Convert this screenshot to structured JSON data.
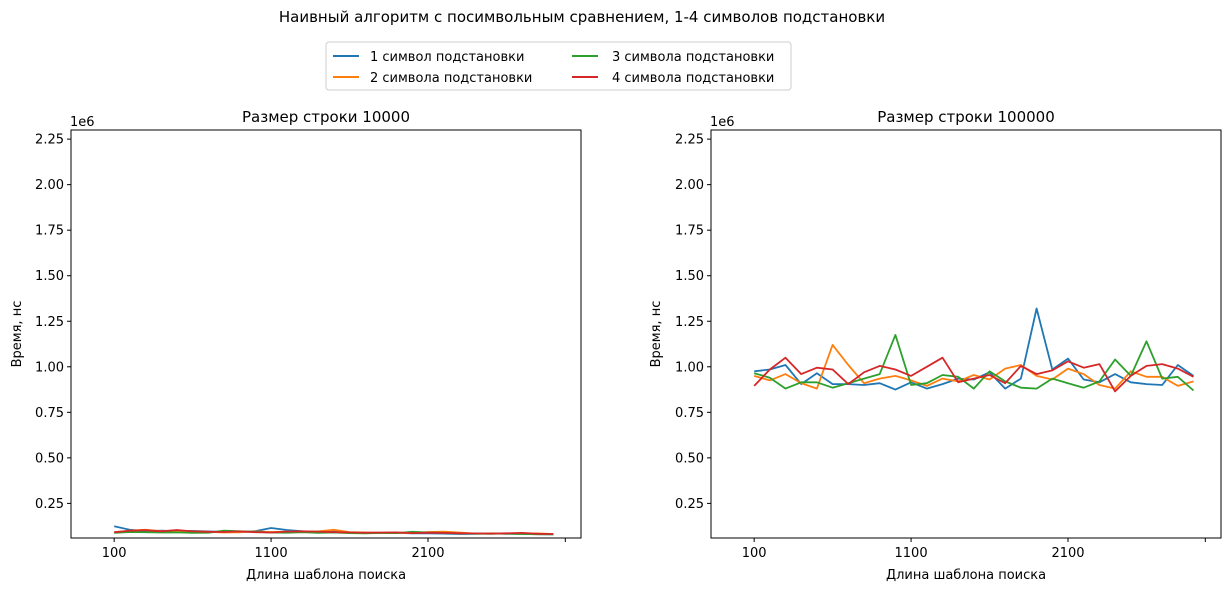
{
  "figure": {
    "suptitle": "Наивный алгоритм с посимвольным сравнением, 1-4 символов подстановки"
  },
  "legend": {
    "placement": "top-center",
    "entries": [
      {
        "label": "1 символ подстановки",
        "color": "#1f77b4"
      },
      {
        "label": "2 символа подстановки",
        "color": "#ff7f0e"
      },
      {
        "label": "3 символа подстановки",
        "color": "#2ca02c"
      },
      {
        "label": "4 символа подстановки",
        "color": "#d62728"
      }
    ]
  },
  "chart_data": [
    {
      "type": "line",
      "title": "Размер строки 10000",
      "xlabel": "Длина шаблона поиска",
      "ylabel": "Время, нс",
      "y_offset_label": "1e6",
      "xlim": [
        -175,
        3075
      ],
      "ylim": [
        60000,
        2300000
      ],
      "xticks": [
        100,
        1100,
        2100
      ],
      "yticks": [
        250000,
        500000,
        750000,
        1000000,
        1250000,
        1500000,
        1750000,
        2000000,
        2250000
      ],
      "ytick_labels": [
        "0.25",
        "0.50",
        "0.75",
        "1.00",
        "1.25",
        "1.50",
        "1.75",
        "2.00",
        "2.25"
      ],
      "x": [
        100,
        200,
        300,
        400,
        500,
        600,
        700,
        800,
        900,
        1000,
        1100,
        1200,
        1300,
        1400,
        1500,
        1600,
        1700,
        1800,
        1900,
        2000,
        2100,
        2200,
        2300,
        2400,
        2500,
        2600,
        2700,
        2800,
        2900
      ],
      "series": [
        {
          "name": "1 символ подстановки",
          "color": "#1f77b4",
          "values": [
            125000,
            105000,
            98000,
            100000,
            97000,
            99000,
            96000,
            93000,
            92000,
            98000,
            115000,
            104000,
            97000,
            96000,
            95000,
            90000,
            88000,
            87000,
            88000,
            86000,
            85000,
            84000,
            82000,
            83000,
            85000,
            83000,
            82000,
            81000,
            80000
          ]
        },
        {
          "name": "2 символа подстановки",
          "color": "#ff7f0e",
          "values": [
            90000,
            100000,
            105000,
            98000,
            95000,
            97000,
            94000,
            90000,
            92000,
            96000,
            93000,
            95000,
            93000,
            96000,
            105000,
            92000,
            90000,
            88000,
            89000,
            87000,
            93000,
            95000,
            90000,
            84000,
            86000,
            84000,
            83000,
            85000,
            82000
          ]
        },
        {
          "name": "3 символа подстановки",
          "color": "#2ca02c",
          "values": [
            88000,
            93000,
            92000,
            90000,
            91000,
            88000,
            89000,
            100000,
            97000,
            94000,
            90000,
            89000,
            92000,
            88000,
            90000,
            87000,
            86000,
            88000,
            87000,
            94000,
            90000,
            88000,
            85000,
            84000,
            83000,
            85000,
            82000,
            81000,
            80000
          ]
        },
        {
          "name": "4 символа подстановки",
          "color": "#d62728",
          "values": [
            92000,
            100000,
            103000,
            97000,
            104000,
            96000,
            94000,
            93000,
            96000,
            92000,
            90000,
            95000,
            97000,
            95000,
            92000,
            91000,
            89000,
            90000,
            91000,
            87000,
            89000,
            88000,
            86000,
            85000,
            84000,
            86000,
            88000,
            83000,
            82000
          ]
        }
      ]
    },
    {
      "type": "line",
      "title": "Размер строки 100000",
      "xlabel": "Длина шаблона поиска",
      "ylabel": "Время, нс",
      "y_offset_label": "1e6",
      "xlim": [
        -175,
        3075
      ],
      "ylim": [
        60000,
        2300000
      ],
      "xticks": [
        100,
        1100,
        2100
      ],
      "yticks": [
        250000,
        500000,
        750000,
        1000000,
        1250000,
        1500000,
        1750000,
        2000000,
        2250000
      ],
      "ytick_labels": [
        "0.25",
        "0.50",
        "0.75",
        "1.00",
        "1.25",
        "1.50",
        "1.75",
        "2.00",
        "2.25"
      ],
      "x": [
        100,
        200,
        300,
        400,
        500,
        600,
        700,
        800,
        900,
        1000,
        1100,
        1200,
        1300,
        1400,
        1500,
        1600,
        1700,
        1800,
        1900,
        2000,
        2100,
        2200,
        2300,
        2400,
        2500,
        2600,
        2700,
        2800,
        2900
      ],
      "series": [
        {
          "name": "1 символ подстановки",
          "color": "#1f77b4",
          "values": [
            975000,
            985000,
            1010000,
            905000,
            965000,
            905000,
            905000,
            900000,
            910000,
            875000,
            915000,
            880000,
            905000,
            935000,
            930000,
            970000,
            880000,
            935000,
            1320000,
            985000,
            1045000,
            930000,
            915000,
            960000,
            915000,
            905000,
            900000,
            1010000,
            950000
          ]
        },
        {
          "name": "2 символа подстановки",
          "color": "#ff7f0e",
          "values": [
            950000,
            925000,
            960000,
            910000,
            880000,
            1120000,
            1010000,
            910000,
            935000,
            950000,
            925000,
            895000,
            935000,
            920000,
            955000,
            930000,
            990000,
            1010000,
            950000,
            930000,
            990000,
            960000,
            900000,
            880000,
            975000,
            945000,
            945000,
            895000,
            920000
          ]
        },
        {
          "name": "3 символа подстановки",
          "color": "#2ca02c",
          "values": [
            965000,
            940000,
            880000,
            915000,
            915000,
            885000,
            910000,
            935000,
            960000,
            1175000,
            900000,
            910000,
            955000,
            945000,
            880000,
            975000,
            920000,
            885000,
            880000,
            935000,
            910000,
            885000,
            920000,
            1040000,
            950000,
            1140000,
            935000,
            945000,
            870000
          ]
        },
        {
          "name": "4 символа подстановки",
          "color": "#d62728",
          "values": [
            895000,
            985000,
            1050000,
            960000,
            995000,
            985000,
            905000,
            970000,
            1005000,
            985000,
            950000,
            1000000,
            1050000,
            915000,
            935000,
            955000,
            910000,
            1005000,
            960000,
            980000,
            1030000,
            995000,
            1015000,
            865000,
            950000,
            1005000,
            1015000,
            990000,
            945000
          ]
        }
      ]
    }
  ]
}
